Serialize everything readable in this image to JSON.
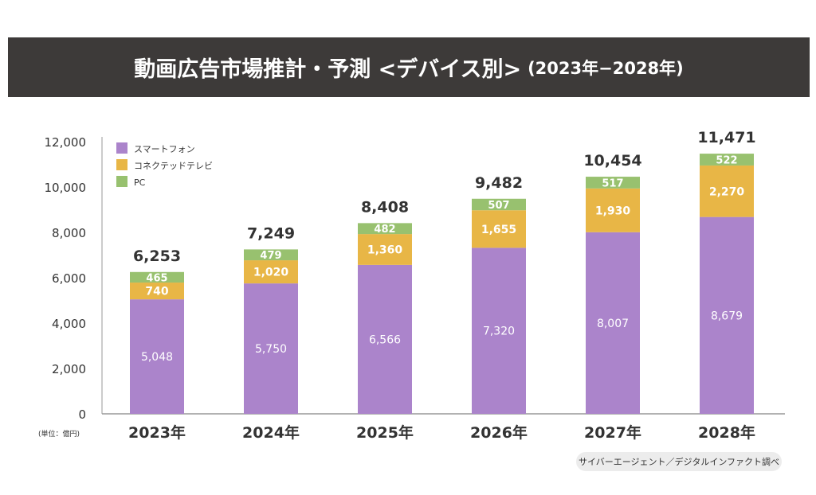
{
  "title": {
    "main": "動画広告市場推計・予測 <デバイス別>",
    "sub": "(2023年−2028年)"
  },
  "unit_label": "(単位：億円)",
  "source": "サイバーエージェント／デジタルインファクト調べ",
  "colors": {
    "smartphone": "#ab84cb",
    "ctv": "#e8b646",
    "pc": "#98c16f",
    "title_bg": "#3d3a39"
  },
  "chart_data": {
    "type": "bar",
    "stacked": true,
    "categories": [
      "2023年",
      "2024年",
      "2025年",
      "2026年",
      "2027年",
      "2028年"
    ],
    "series": [
      {
        "name": "スマートフォン",
        "values": [
          5048,
          5750,
          6566,
          7320,
          8007,
          8679
        ],
        "labels": [
          "5,048",
          "5,750",
          "6,566",
          "7,320",
          "8,007",
          "8,679"
        ]
      },
      {
        "name": "コネクテッドテレビ",
        "values": [
          740,
          1020,
          1360,
          1655,
          1930,
          2270
        ],
        "labels": [
          "740",
          "1,020",
          "1,360",
          "1,655",
          "1,930",
          "2,270"
        ]
      },
      {
        "name": "PC",
        "values": [
          465,
          479,
          482,
          507,
          517,
          522
        ],
        "labels": [
          "465",
          "479",
          "482",
          "507",
          "517",
          "522"
        ]
      }
    ],
    "totals": [
      "6,253",
      "7,249",
      "8,408",
      "9,482",
      "10,454",
      "11,471"
    ],
    "ylim": [
      0,
      12000
    ],
    "yticks": [
      "0",
      "2,000",
      "4,000",
      "6,000",
      "8,000",
      "10,000",
      "12,000"
    ],
    "grid": false,
    "legend": "top-left"
  }
}
